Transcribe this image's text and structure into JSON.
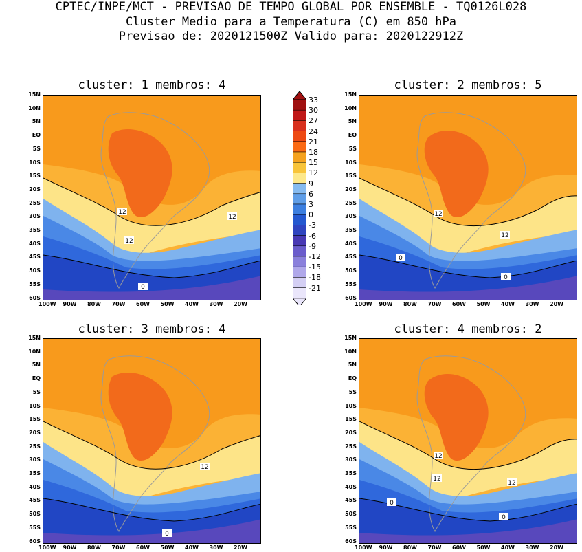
{
  "header": {
    "line1": "CPTEC/INPE/MCT - PREVISAO DE TEMPO GLOBAL POR ENSEMBLE - TQ0126L028",
    "line2": "Cluster Medio para a Temperatura (C) em 850 hPa",
    "line3": "Previsao de: 2020121500Z   Valido para: 2020122912Z"
  },
  "panels": [
    {
      "title": "cluster: 1  membros: 4",
      "contours": [
        "12",
        "12",
        "12",
        "0"
      ]
    },
    {
      "title": "cluster: 2  membros: 5",
      "contours": [
        "12",
        "12",
        "0",
        "0"
      ]
    },
    {
      "title": "cluster: 3  membros: 4",
      "contours": [
        "12",
        "0"
      ]
    },
    {
      "title": "cluster: 4  membros: 2",
      "contours": [
        "12",
        "12",
        "12",
        "0",
        "0"
      ]
    }
  ],
  "axes": {
    "lat_ticks": [
      "15N",
      "10N",
      "5N",
      "EQ",
      "5S",
      "10S",
      "15S",
      "20S",
      "25S",
      "30S",
      "35S",
      "40S",
      "45S",
      "50S",
      "55S",
      "60S"
    ],
    "lon_ticks": [
      "100W",
      "90W",
      "80W",
      "70W",
      "60W",
      "50W",
      "40W",
      "30W",
      "20W"
    ]
  },
  "colorbar": {
    "labels": [
      "33",
      "30",
      "27",
      "24",
      "21",
      "18",
      "15",
      "12",
      "9",
      "6",
      "3",
      "0",
      "-3",
      "-6",
      "-9",
      "-12",
      "-15",
      "-18",
      "-21"
    ],
    "colors": [
      "#a01010",
      "#c01818",
      "#d8301e",
      "#ee4a14",
      "#fb6a14",
      "#f5a21e",
      "#f8c43a",
      "#fde88a",
      "#86bbf0",
      "#5f9ee8",
      "#3c7fe0",
      "#2458d0",
      "#2f44c0",
      "#4838b4",
      "#6a5ccc",
      "#8a80dc",
      "#b0a8ea",
      "#d4cff4",
      "#eae6fb"
    ]
  },
  "colors": {
    "deep_orange": "#f26a1b",
    "orange": "#f89a1c",
    "light_orange": "#fbb235",
    "pale_yellow": "#fde488",
    "light_blue": "#7fb3ee",
    "blue": "#4a88e6",
    "mid_blue": "#2f68dc",
    "dark_blue": "#2146c4",
    "purple": "#5848bc",
    "coast": "#9a9a9a"
  }
}
